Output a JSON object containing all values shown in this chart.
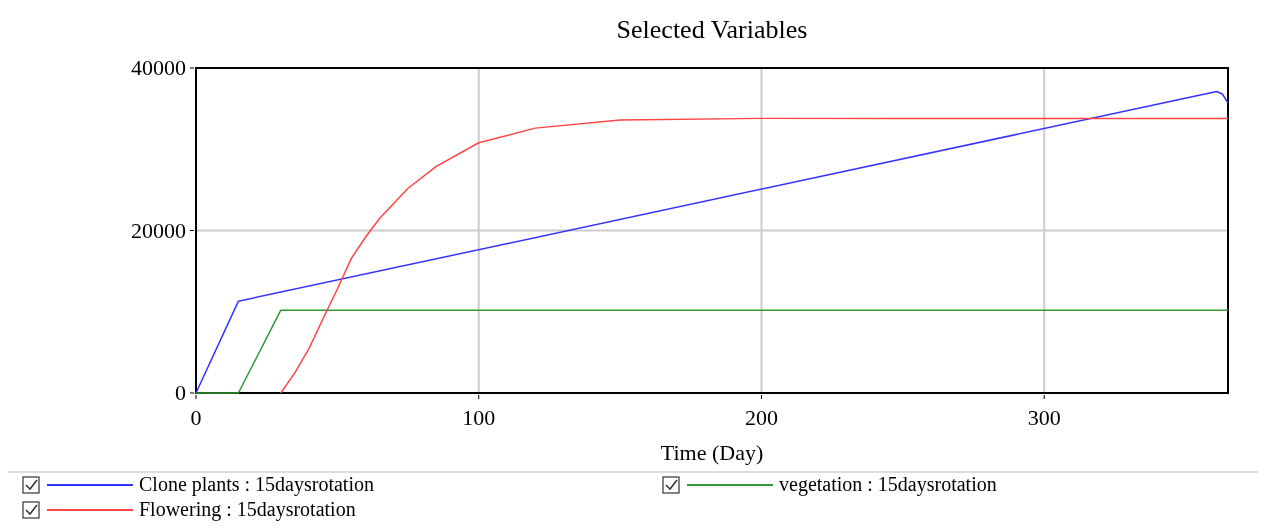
{
  "chart_data": {
    "type": "line",
    "title": "Selected Variables",
    "xlabel": "Time (Day)",
    "xlim": [
      0,
      365
    ],
    "xticks": [
      0,
      100,
      200,
      300
    ],
    "ylim": [
      0,
      40000
    ],
    "yticks": [
      0,
      20000,
      40000
    ],
    "grid": true,
    "legend": "bottom",
    "series": [
      {
        "name": "Clone plants : 15daysrotation",
        "color": "#3333ff",
        "x": [
          0,
          15,
          361,
          363,
          365
        ],
        "values": [
          0,
          11300,
          37100,
          36800,
          35700
        ]
      },
      {
        "name": "vegetation : 15daysrotation",
        "color": "#339933",
        "x": [
          0,
          15,
          30,
          365
        ],
        "values": [
          0,
          0,
          10200,
          10200
        ]
      },
      {
        "name": "Flowering : 15daysrotation",
        "color": "#ff4444",
        "x": [
          30,
          35,
          40,
          45,
          50,
          55,
          60,
          65,
          75,
          85,
          100,
          120,
          150,
          200,
          250,
          300,
          365
        ],
        "values": [
          0,
          2500,
          5500,
          9200,
          12800,
          16600,
          19200,
          21500,
          25200,
          27900,
          30800,
          32600,
          33600,
          33800,
          33800,
          33800,
          33800
        ]
      }
    ]
  }
}
